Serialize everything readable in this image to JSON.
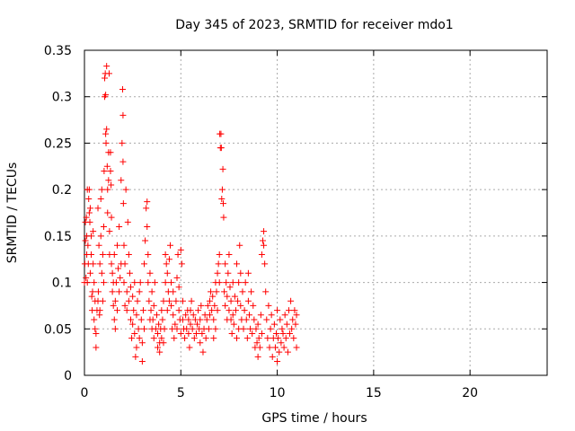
{
  "chart_data": {
    "type": "scatter",
    "title": "Day 345 of 2023, SRMTID for receiver mdo1",
    "xlabel": "GPS time / hours",
    "ylabel": "SRMTID / TECUs",
    "xlim": [
      0,
      24
    ],
    "ylim": [
      0,
      0.35
    ],
    "x_ticks": [
      0,
      5,
      10,
      15,
      20
    ],
    "x_tick_labels": [
      "0",
      "5",
      "10",
      "15",
      "20"
    ],
    "y_ticks": [
      0,
      0.05,
      0.1,
      0.15,
      0.2,
      0.25,
      0.3,
      0.35
    ],
    "y_tick_labels": [
      "0",
      "0.05",
      "0.1",
      "0.15",
      "0.2",
      "0.25",
      "0.3",
      "0.35"
    ],
    "grid": true,
    "marker": "+",
    "color": "#ff0000",
    "points": [
      [
        0.0,
        0.1
      ],
      [
        0.02,
        0.12
      ],
      [
        0.05,
        0.145
      ],
      [
        0.05,
        0.165
      ],
      [
        0.08,
        0.105
      ],
      [
        0.1,
        0.17
      ],
      [
        0.12,
        0.13
      ],
      [
        0.12,
        0.15
      ],
      [
        0.15,
        0.1
      ],
      [
        0.15,
        0.2
      ],
      [
        0.18,
        0.14
      ],
      [
        0.2,
        0.12
      ],
      [
        0.22,
        0.19
      ],
      [
        0.25,
        0.2
      ],
      [
        0.25,
        0.175
      ],
      [
        0.28,
        0.165
      ],
      [
        0.3,
        0.18
      ],
      [
        0.3,
        0.11
      ],
      [
        0.35,
        0.13
      ],
      [
        0.35,
        0.15
      ],
      [
        0.38,
        0.085
      ],
      [
        0.4,
        0.07
      ],
      [
        0.42,
        0.09
      ],
      [
        0.45,
        0.12
      ],
      [
        0.45,
        0.155
      ],
      [
        0.5,
        0.06
      ],
      [
        0.5,
        0.1
      ],
      [
        0.55,
        0.05
      ],
      [
        0.55,
        0.08
      ],
      [
        0.6,
        0.03
      ],
      [
        0.6,
        0.045
      ],
      [
        0.65,
        0.07
      ],
      [
        0.7,
        0.08
      ],
      [
        0.7,
        0.18
      ],
      [
        0.72,
        0.09
      ],
      [
        0.75,
        0.14
      ],
      [
        0.78,
        0.065
      ],
      [
        0.8,
        0.07
      ],
      [
        0.8,
        0.12
      ],
      [
        0.85,
        0.19
      ],
      [
        0.85,
        0.15
      ],
      [
        0.9,
        0.2
      ],
      [
        0.9,
        0.11
      ],
      [
        0.95,
        0.13
      ],
      [
        0.95,
        0.08
      ],
      [
        1.0,
        0.16
      ],
      [
        1.0,
        0.1
      ],
      [
        1.02,
        0.22
      ],
      [
        1.05,
        0.3
      ],
      [
        1.05,
        0.32
      ],
      [
        1.08,
        0.325
      ],
      [
        1.1,
        0.26
      ],
      [
        1.1,
        0.302
      ],
      [
        1.12,
        0.25
      ],
      [
        1.15,
        0.333
      ],
      [
        1.15,
        0.265
      ],
      [
        1.18,
        0.225
      ],
      [
        1.2,
        0.2
      ],
      [
        1.2,
        0.175
      ],
      [
        1.25,
        0.24
      ],
      [
        1.25,
        0.21
      ],
      [
        1.28,
        0.325
      ],
      [
        1.3,
        0.155
      ],
      [
        1.3,
        0.13
      ],
      [
        1.35,
        0.24
      ],
      [
        1.35,
        0.22
      ],
      [
        1.38,
        0.205
      ],
      [
        1.4,
        0.17
      ],
      [
        1.4,
        0.12
      ],
      [
        1.45,
        0.11
      ],
      [
        1.45,
        0.09
      ],
      [
        1.5,
        0.1
      ],
      [
        1.5,
        0.075
      ],
      [
        1.55,
        0.13
      ],
      [
        1.55,
        0.06
      ],
      [
        1.6,
        0.08
      ],
      [
        1.6,
        0.05
      ],
      [
        1.65,
        0.1
      ],
      [
        1.7,
        0.14
      ],
      [
        1.7,
        0.07
      ],
      [
        1.75,
        0.115
      ],
      [
        1.8,
        0.16
      ],
      [
        1.8,
        0.09
      ],
      [
        1.85,
        0.105
      ],
      [
        1.9,
        0.21
      ],
      [
        1.9,
        0.12
      ],
      [
        1.95,
        0.25
      ],
      [
        1.98,
        0.308
      ],
      [
        2.0,
        0.28
      ],
      [
        2.0,
        0.23
      ],
      [
        2.02,
        0.185
      ],
      [
        2.05,
        0.14
      ],
      [
        2.05,
        0.1
      ],
      [
        2.1,
        0.12
      ],
      [
        2.1,
        0.075
      ],
      [
        2.15,
        0.2
      ],
      [
        2.2,
        0.07
      ],
      [
        2.2,
        0.09
      ],
      [
        2.25,
        0.165
      ],
      [
        2.3,
        0.13
      ],
      [
        2.3,
        0.08
      ],
      [
        2.35,
        0.11
      ],
      [
        2.4,
        0.06
      ],
      [
        2.4,
        0.095
      ],
      [
        2.45,
        0.04
      ],
      [
        2.5,
        0.085
      ],
      [
        2.5,
        0.055
      ],
      [
        2.55,
        0.07
      ],
      [
        2.6,
        0.1
      ],
      [
        2.6,
        0.045
      ],
      [
        2.65,
        0.02
      ],
      [
        2.7,
        0.065
      ],
      [
        2.7,
        0.03
      ],
      [
        2.75,
        0.08
      ],
      [
        2.8,
        0.05
      ],
      [
        2.85,
        0.09
      ],
      [
        2.85,
        0.04
      ],
      [
        2.9,
        0.1
      ],
      [
        2.95,
        0.06
      ],
      [
        3.0,
        0.035
      ],
      [
        3.0,
        0.015
      ],
      [
        3.05,
        0.07
      ],
      [
        3.1,
        0.05
      ],
      [
        3.1,
        0.12
      ],
      [
        3.15,
        0.145
      ],
      [
        3.2,
        0.18
      ],
      [
        3.25,
        0.187
      ],
      [
        3.25,
        0.16
      ],
      [
        3.3,
        0.13
      ],
      [
        3.3,
        0.1
      ],
      [
        3.35,
        0.08
      ],
      [
        3.4,
        0.06
      ],
      [
        3.4,
        0.11
      ],
      [
        3.45,
        0.07
      ],
      [
        3.5,
        0.05
      ],
      [
        3.5,
        0.09
      ],
      [
        3.55,
        0.06
      ],
      [
        3.6,
        0.04
      ],
      [
        3.6,
        0.075
      ],
      [
        3.65,
        0.1
      ],
      [
        3.7,
        0.05
      ],
      [
        3.75,
        0.065
      ],
      [
        3.8,
        0.03
      ],
      [
        3.8,
        0.045
      ],
      [
        3.85,
        0.055
      ],
      [
        3.9,
        0.035
      ],
      [
        3.9,
        0.025
      ],
      [
        3.95,
        0.05
      ],
      [
        4.0,
        0.04
      ],
      [
        4.0,
        0.07
      ],
      [
        4.05,
        0.06
      ],
      [
        4.1,
        0.035
      ],
      [
        4.1,
        0.08
      ],
      [
        4.15,
        0.05
      ],
      [
        4.2,
        0.1
      ],
      [
        4.2,
        0.13
      ],
      [
        4.25,
        0.12
      ],
      [
        4.3,
        0.07
      ],
      [
        4.3,
        0.11
      ],
      [
        4.35,
        0.09
      ],
      [
        4.4,
        0.08
      ],
      [
        4.4,
        0.125
      ],
      [
        4.45,
        0.14
      ],
      [
        4.5,
        0.075
      ],
      [
        4.5,
        0.1
      ],
      [
        4.55,
        0.05
      ],
      [
        4.6,
        0.065
      ],
      [
        4.6,
        0.09
      ],
      [
        4.65,
        0.04
      ],
      [
        4.7,
        0.055
      ],
      [
        4.75,
        0.08
      ],
      [
        4.8,
        0.105
      ],
      [
        4.8,
        0.05
      ],
      [
        4.85,
        0.13
      ],
      [
        4.9,
        0.095
      ],
      [
        4.9,
        0.07
      ],
      [
        4.95,
        0.06
      ],
      [
        5.0,
        0.045
      ],
      [
        5.0,
        0.135
      ],
      [
        5.05,
        0.12
      ],
      [
        5.1,
        0.08
      ],
      [
        5.1,
        0.06
      ],
      [
        5.15,
        0.05
      ],
      [
        5.2,
        0.04
      ],
      [
        5.25,
        0.065
      ],
      [
        5.3,
        0.05
      ],
      [
        5.35,
        0.07
      ],
      [
        5.4,
        0.06
      ],
      [
        5.4,
        0.045
      ],
      [
        5.45,
        0.03
      ],
      [
        5.5,
        0.055
      ],
      [
        5.5,
        0.07
      ],
      [
        5.55,
        0.08
      ],
      [
        5.6,
        0.05
      ],
      [
        5.65,
        0.065
      ],
      [
        5.7,
        0.04
      ],
      [
        5.75,
        0.06
      ],
      [
        5.8,
        0.045
      ],
      [
        5.85,
        0.055
      ],
      [
        5.9,
        0.07
      ],
      [
        5.95,
        0.05
      ],
      [
        6.0,
        0.035
      ],
      [
        6.0,
        0.06
      ],
      [
        6.05,
        0.075
      ],
      [
        6.1,
        0.045
      ],
      [
        6.15,
        0.025
      ],
      [
        6.2,
        0.05
      ],
      [
        6.25,
        0.065
      ],
      [
        6.3,
        0.04
      ],
      [
        6.35,
        0.06
      ],
      [
        6.4,
        0.075
      ],
      [
        6.45,
        0.05
      ],
      [
        6.5,
        0.065
      ],
      [
        6.5,
        0.08
      ],
      [
        6.55,
        0.09
      ],
      [
        6.6,
        0.07
      ],
      [
        6.65,
        0.085
      ],
      [
        6.7,
        0.06
      ],
      [
        6.7,
        0.04
      ],
      [
        6.75,
        0.075
      ],
      [
        6.8,
        0.1
      ],
      [
        6.8,
        0.05
      ],
      [
        6.85,
        0.09
      ],
      [
        6.9,
        0.11
      ],
      [
        6.9,
        0.07
      ],
      [
        6.95,
        0.12
      ],
      [
        7.0,
        0.13
      ],
      [
        7.0,
        0.1
      ],
      [
        7.02,
        0.26
      ],
      [
        7.05,
        0.245
      ],
      [
        7.08,
        0.26
      ],
      [
        7.1,
        0.245
      ],
      [
        7.12,
        0.19
      ],
      [
        7.15,
        0.2
      ],
      [
        7.18,
        0.222
      ],
      [
        7.2,
        0.185
      ],
      [
        7.22,
        0.17
      ],
      [
        7.25,
        0.09
      ],
      [
        7.3,
        0.12
      ],
      [
        7.3,
        0.075
      ],
      [
        7.35,
        0.1
      ],
      [
        7.4,
        0.06
      ],
      [
        7.4,
        0.085
      ],
      [
        7.45,
        0.11
      ],
      [
        7.5,
        0.07
      ],
      [
        7.5,
        0.13
      ],
      [
        7.55,
        0.095
      ],
      [
        7.6,
        0.06
      ],
      [
        7.6,
        0.08
      ],
      [
        7.65,
        0.045
      ],
      [
        7.7,
        0.1
      ],
      [
        7.7,
        0.065
      ],
      [
        7.75,
        0.055
      ],
      [
        7.8,
        0.085
      ],
      [
        7.85,
        0.07
      ],
      [
        7.9,
        0.04
      ],
      [
        7.9,
        0.12
      ],
      [
        7.95,
        0.08
      ],
      [
        8.0,
        0.05
      ],
      [
        8.0,
        0.1
      ],
      [
        8.05,
        0.14
      ],
      [
        8.1,
        0.11
      ],
      [
        8.1,
        0.075
      ],
      [
        8.15,
        0.06
      ],
      [
        8.2,
        0.09
      ],
      [
        8.25,
        0.05
      ],
      [
        8.3,
        0.07
      ],
      [
        8.35,
        0.1
      ],
      [
        8.4,
        0.06
      ],
      [
        8.45,
        0.04
      ],
      [
        8.5,
        0.08
      ],
      [
        8.5,
        0.11
      ],
      [
        8.55,
        0.065
      ],
      [
        8.6,
        0.05
      ],
      [
        8.65,
        0.09
      ],
      [
        8.7,
        0.045
      ],
      [
        8.75,
        0.075
      ],
      [
        8.8,
        0.06
      ],
      [
        8.85,
        0.03
      ],
      [
        8.9,
        0.05
      ],
      [
        8.95,
        0.035
      ],
      [
        9.0,
        0.055
      ],
      [
        9.0,
        0.02
      ],
      [
        9.05,
        0.04
      ],
      [
        9.1,
        0.03
      ],
      [
        9.15,
        0.065
      ],
      [
        9.2,
        0.045
      ],
      [
        9.2,
        0.13
      ],
      [
        9.25,
        0.145
      ],
      [
        9.3,
        0.155
      ],
      [
        9.3,
        0.14
      ],
      [
        9.35,
        0.12
      ],
      [
        9.4,
        0.09
      ],
      [
        9.45,
        0.06
      ],
      [
        9.5,
        0.04
      ],
      [
        9.55,
        0.075
      ],
      [
        9.6,
        0.03
      ],
      [
        9.65,
        0.05
      ],
      [
        9.7,
        0.065
      ],
      [
        9.75,
        0.02
      ],
      [
        9.8,
        0.04
      ],
      [
        9.85,
        0.055
      ],
      [
        9.9,
        0.03
      ],
      [
        9.95,
        0.045
      ],
      [
        10.0,
        0.015
      ],
      [
        10.0,
        0.07
      ],
      [
        10.05,
        0.04
      ],
      [
        10.1,
        0.025
      ],
      [
        10.15,
        0.06
      ],
      [
        10.2,
        0.035
      ],
      [
        10.25,
        0.05
      ],
      [
        10.3,
        0.045
      ],
      [
        10.35,
        0.03
      ],
      [
        10.4,
        0.065
      ],
      [
        10.45,
        0.04
      ],
      [
        10.5,
        0.055
      ],
      [
        10.55,
        0.025
      ],
      [
        10.6,
        0.07
      ],
      [
        10.65,
        0.045
      ],
      [
        10.7,
        0.08
      ],
      [
        10.75,
        0.05
      ],
      [
        10.8,
        0.06
      ],
      [
        10.85,
        0.04
      ],
      [
        10.9,
        0.07
      ],
      [
        10.95,
        0.055
      ],
      [
        11.0,
        0.03
      ],
      [
        11.0,
        0.065
      ]
    ]
  }
}
